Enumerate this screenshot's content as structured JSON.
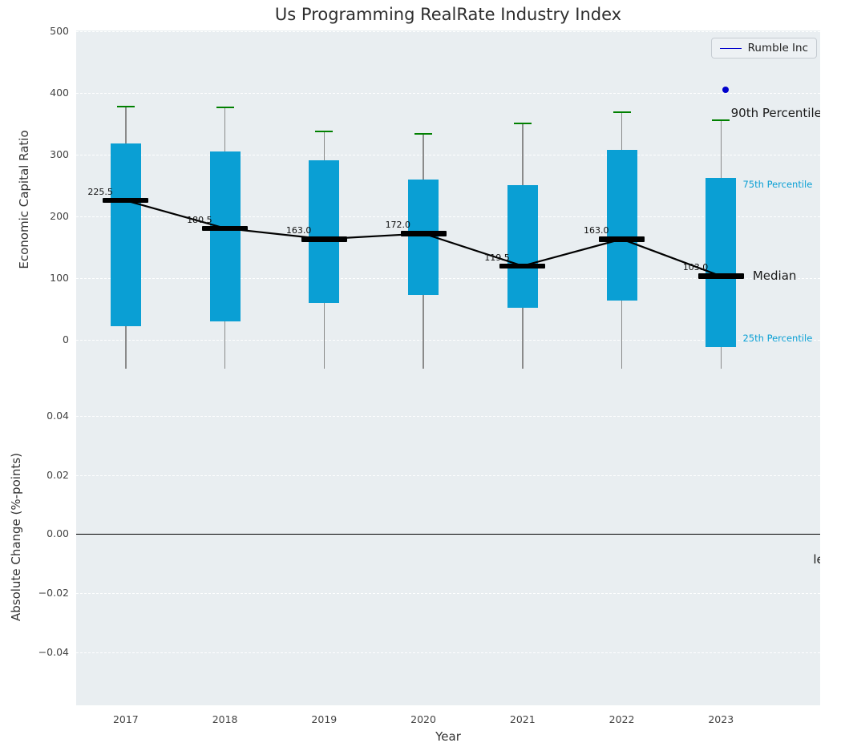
{
  "chart_data": {
    "type": "boxplot",
    "title": "Us Programming RealRate Industry Index",
    "xlabel": "Year",
    "x": [
      2017,
      2018,
      2019,
      2020,
      2021,
      2022,
      2023
    ],
    "legend": {
      "label": "Rumble Inc",
      "line_color": "#0000cc",
      "position": "upper right"
    },
    "top_plot": {
      "ylabel": "Economic Capital Ratio",
      "ylim": [
        -47,
        501
      ],
      "xlim": [
        2016.5,
        2024
      ],
      "yticks": [
        0,
        100,
        200,
        300,
        400,
        500
      ],
      "grid": "horizontal-dashed",
      "boxes": [
        {
          "year": 2017,
          "p25": 22,
          "median": 225.5,
          "p75": 318,
          "p90": 378
        },
        {
          "year": 2018,
          "p25": 30,
          "median": 180.5,
          "p75": 305,
          "p90": 376
        },
        {
          "year": 2019,
          "p25": 60,
          "median": 163.0,
          "p75": 290,
          "p90": 337
        },
        {
          "year": 2020,
          "p25": 72,
          "median": 172.0,
          "p75": 260,
          "p90": 333
        },
        {
          "year": 2021,
          "p25": 52,
          "median": 119.5,
          "p75": 250,
          "p90": 350
        },
        {
          "year": 2022,
          "p25": 63,
          "median": 163.0,
          "p75": 307,
          "p90": 368
        },
        {
          "year": 2023,
          "p25": -12,
          "median": 103.0,
          "p75": 262,
          "p90": 355
        }
      ],
      "median_line": [
        225.5,
        180.5,
        163.0,
        172.0,
        119.5,
        163.0,
        103.0
      ],
      "company_point": {
        "label": "Rumble Inc",
        "year": 2023.05,
        "value": 405
      },
      "annotations": [
        {
          "text": "90th Percentile",
          "x": 2023.1,
          "y": 367,
          "color": "#1a1a1a",
          "size": 15
        },
        {
          "text": "75th Percentile",
          "x": 2023.22,
          "y": 252,
          "color": "#0a9fd4",
          "size": 11.5
        },
        {
          "text": "Median",
          "x": 2023.32,
          "y": 104,
          "color": "#1a1a1a",
          "size": 15
        },
        {
          "text": "25th Percentile",
          "x": 2023.22,
          "y": 2,
          "color": "#0a9fd4",
          "size": 11.5
        }
      ]
    },
    "bottom_plot": {
      "ylabel": "Absolute Change (%-points)",
      "ylim": [
        -0.058,
        0.056
      ],
      "xlim": [
        2016.5,
        2024
      ],
      "yticks": [
        0.04,
        0.02,
        0,
        -0.02,
        -0.04
      ],
      "ytick_labels": [
        "0.04",
        "0.02",
        "0.00",
        "−0.02",
        "−0.04"
      ],
      "zero_line": 0,
      "grid": "horizontal-dashed",
      "annotations": [
        {
          "text": "le",
          "x": 2023.93,
          "y": -0.0085,
          "color": "#1a1a1a",
          "size": 15
        }
      ]
    },
    "colors": {
      "box_fill": "#0a9fd4",
      "cap": "#008000",
      "median": "#000000",
      "whisker": "#8a8a8a",
      "company": "#0000cc",
      "axes_bg": "#e9eef1",
      "grid": "#ffffff"
    }
  }
}
